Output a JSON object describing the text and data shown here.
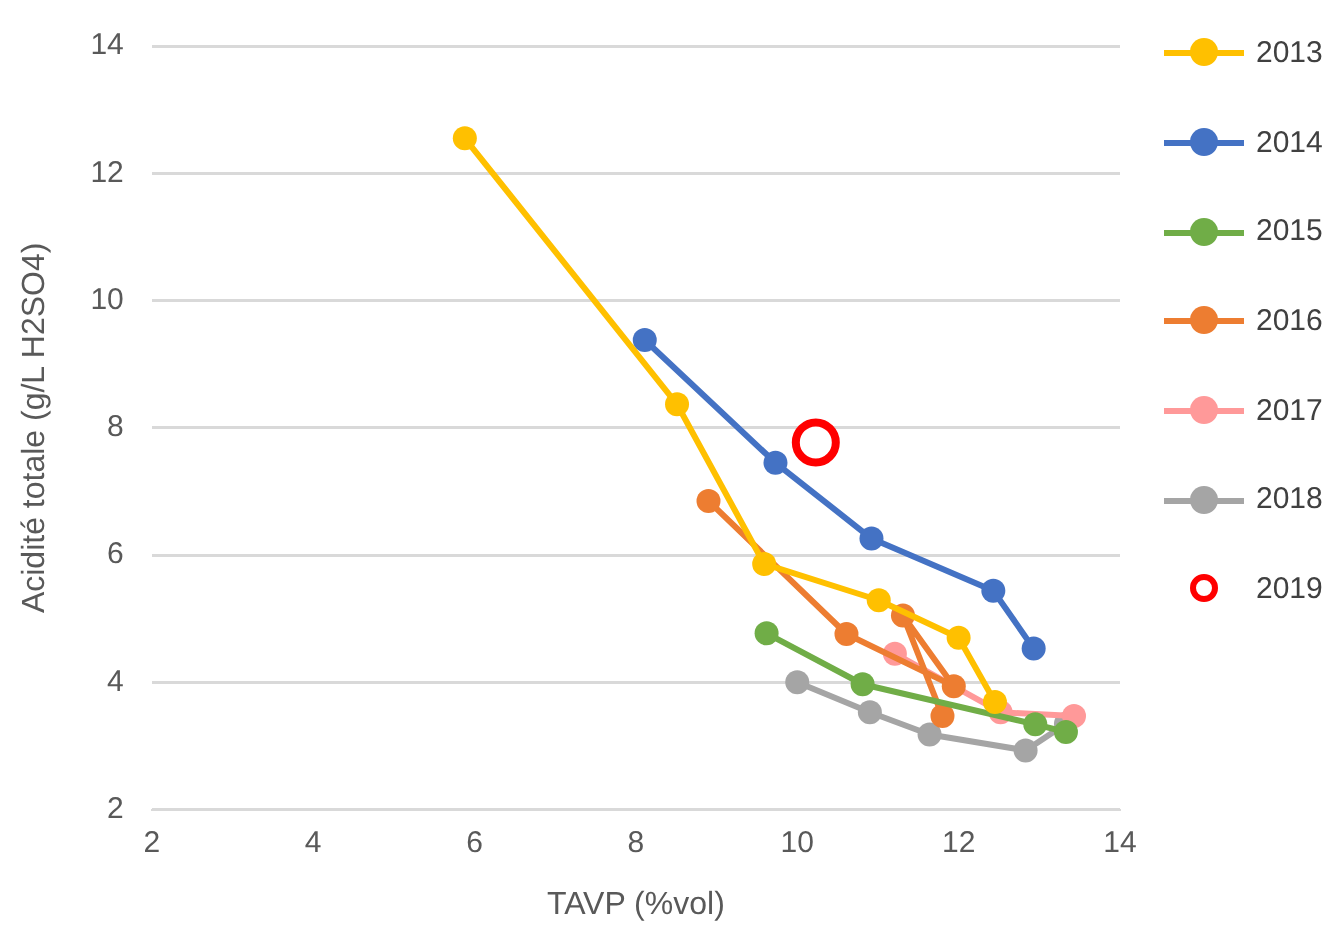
{
  "chart_data": {
    "type": "line",
    "xlabel": "TAVP (%vol)",
    "ylabel": "Acidité totale (g/L H2SO4)",
    "xlim": [
      2,
      14
    ],
    "xticks": [
      2,
      4,
      6,
      8,
      10,
      12,
      14
    ],
    "ylim": [
      2,
      14
    ],
    "yticks": [
      2,
      4,
      6,
      8,
      10,
      12,
      14
    ],
    "grid": "y",
    "legend": "right",
    "marker": "circle",
    "series": [
      {
        "name": "2013",
        "color": "#ffc000",
        "x": [
          5.88,
          8.51,
          9.59,
          11.01,
          12.0,
          12.45
        ],
        "values": [
          12.55,
          8.37,
          5.86,
          5.29,
          4.7,
          3.69
        ]
      },
      {
        "name": "2014",
        "color": "#4472c4",
        "x": [
          8.11,
          9.73,
          10.92,
          12.43,
          12.93
        ],
        "values": [
          9.38,
          7.45,
          6.26,
          5.44,
          4.53
        ]
      },
      {
        "name": "2015",
        "color": "#70ad47",
        "x": [
          9.62,
          10.81,
          12.95,
          13.33
        ],
        "values": [
          4.77,
          3.97,
          3.34,
          3.22
        ]
      },
      {
        "name": "2016",
        "color": "#ed7d31",
        "x": [
          8.9,
          10.61,
          11.94,
          11.31,
          11.8
        ],
        "values": [
          6.85,
          4.76,
          3.94,
          5.05,
          3.47
        ]
      },
      {
        "name": "2017",
        "color": "#ff9999",
        "x": [
          11.21,
          12.52,
          13.43
        ],
        "values": [
          4.45,
          3.53,
          3.47
        ]
      },
      {
        "name": "2018",
        "color": "#a5a5a5",
        "x": [
          10.0,
          10.9,
          11.64,
          12.83,
          13.33
        ],
        "values": [
          4.0,
          3.53,
          3.18,
          2.93,
          3.35
        ]
      },
      {
        "name": "2019",
        "color": "#ff0000",
        "type": "scatter",
        "x": [
          10.23
        ],
        "values": [
          7.77
        ]
      }
    ]
  }
}
